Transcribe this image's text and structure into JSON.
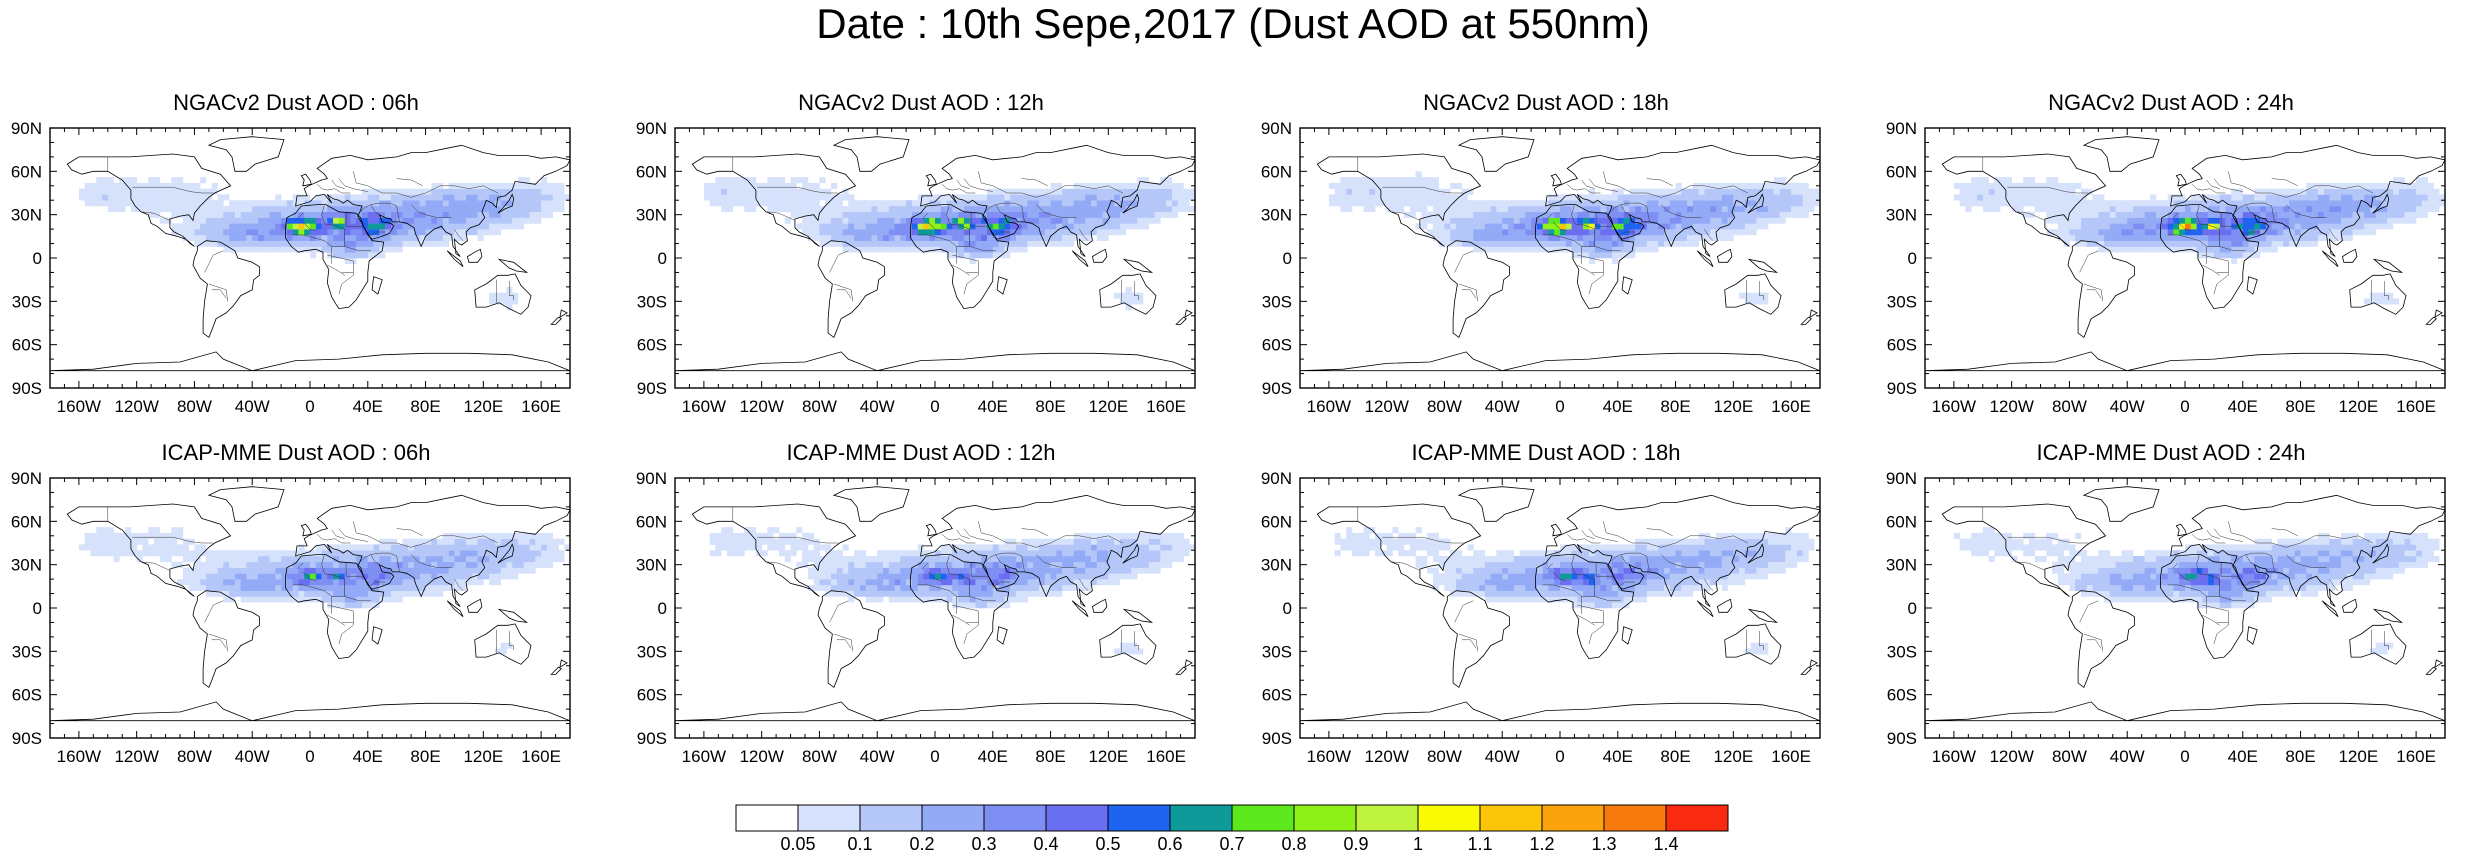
{
  "title": "Date : 10th Sepe,2017 (Dust AOD at 550nm)",
  "panels": [
    {
      "title": "NGACv2 Dust AOD : 06h",
      "row": 0,
      "col": 0,
      "variant": "ngac",
      "hours": 6
    },
    {
      "title": "NGACv2 Dust AOD : 12h",
      "row": 0,
      "col": 1,
      "variant": "ngac",
      "hours": 12
    },
    {
      "title": "NGACv2 Dust AOD : 18h",
      "row": 0,
      "col": 2,
      "variant": "ngac",
      "hours": 18
    },
    {
      "title": "NGACv2 Dust AOD : 24h",
      "row": 0,
      "col": 3,
      "variant": "ngac",
      "hours": 24
    },
    {
      "title": "ICAP-MME Dust AOD : 06h",
      "row": 1,
      "col": 0,
      "variant": "icap",
      "hours": 6
    },
    {
      "title": "ICAP-MME Dust AOD : 12h",
      "row": 1,
      "col": 1,
      "variant": "icap",
      "hours": 12
    },
    {
      "title": "ICAP-MME Dust AOD : 18h",
      "row": 1,
      "col": 2,
      "variant": "icap",
      "hours": 18
    },
    {
      "title": "ICAP-MME Dust AOD : 24h",
      "row": 1,
      "col": 3,
      "variant": "icap",
      "hours": 24
    }
  ],
  "axes": {
    "lon_ticks": [
      "160W",
      "120W",
      "80W",
      "40W",
      "0",
      "40E",
      "80E",
      "120E",
      "160E"
    ],
    "lon_values": [
      -160,
      -120,
      -80,
      -40,
      0,
      40,
      80,
      120,
      160
    ],
    "lat_ticks": [
      "90N",
      "60N",
      "30N",
      "0",
      "30S",
      "60S",
      "90S"
    ],
    "lat_values": [
      90,
      60,
      30,
      0,
      -30,
      -60,
      -90
    ],
    "lon_range": [
      -180,
      180
    ],
    "lat_range": [
      -90,
      90
    ]
  },
  "colorbar": {
    "labels": [
      "0.05",
      "0.1",
      "0.2",
      "0.3",
      "0.4",
      "0.5",
      "0.6",
      "0.7",
      "0.8",
      "0.9",
      "1",
      "1.1",
      "1.2",
      "1.3",
      "1.4"
    ],
    "colors": [
      "#ffffff",
      "#d6e2fb",
      "#b4c7f8",
      "#93aaf6",
      "#7f8ef3",
      "#6a6ef0",
      "#1f63f1",
      "#0f9a9a",
      "#5ce81c",
      "#8ff01a",
      "#bff23c",
      "#fafa05",
      "#fbc508",
      "#fba30c",
      "#f77a0e",
      "#f82b10"
    ]
  },
  "field": {
    "ngac": {
      "base_aod": 0.12,
      "core_aod": 1.05,
      "plume_extent": "Saharan and Arabian dust belt extending across Atlantic and Asia"
    },
    "icap": {
      "base_aod": 0.1,
      "core_aod": 0.55,
      "plume_extent": "Saharan and Arabian dust belt, weaker hot spots"
    }
  }
}
